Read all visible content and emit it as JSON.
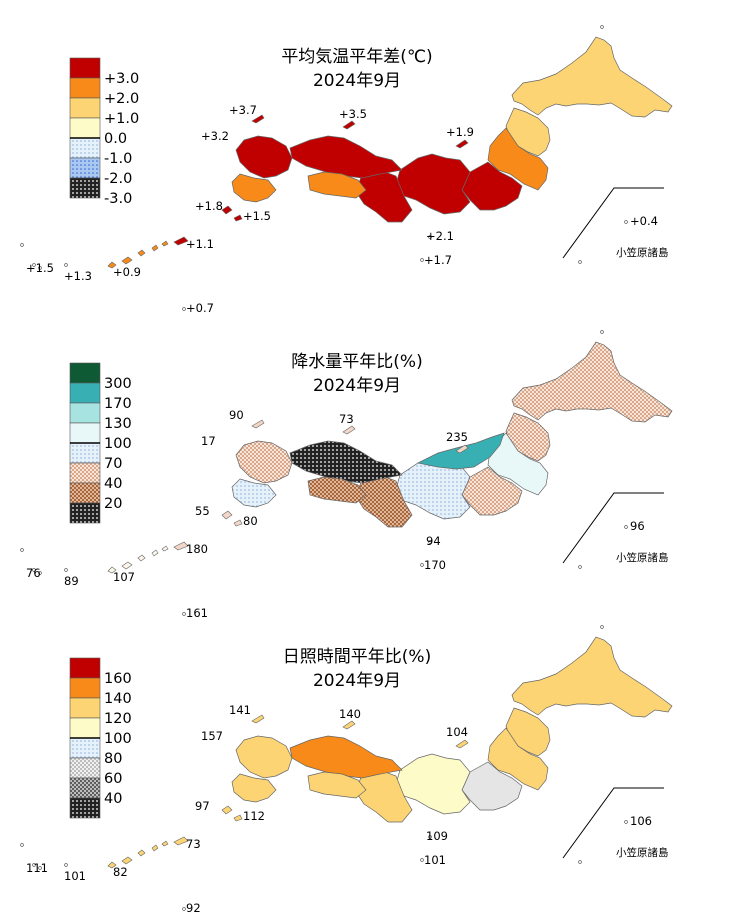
{
  "panels": [
    {
      "id": "temperature",
      "title_line1": "平均気温平年差(℃)",
      "title_line2": "2024年9月",
      "legend": [
        {
          "label": "+3.0",
          "color": "#c00000",
          "pattern": "none"
        },
        {
          "label": "+2.0",
          "color": "#f78a18",
          "pattern": "none"
        },
        {
          "label": "+1.0",
          "color": "#fcd474",
          "pattern": "none"
        },
        {
          "label": "0.0",
          "color": "#fdfbc8",
          "pattern": "none"
        },
        {
          "label": "-1.0",
          "color": "#e6f2fb",
          "pattern": "dots-light"
        },
        {
          "label": "-2.0",
          "color": "#aac8f2",
          "pattern": "dots-blue"
        },
        {
          "label": "-3.0",
          "color": "#3a4fd6",
          "pattern": "dots-white"
        }
      ],
      "station_values": [
        "+3.7",
        "+3.5",
        "+3.2",
        "+1.9",
        "+1.8",
        "+1.5",
        "+1.1",
        "+1.5",
        "+1.3",
        "+0.9",
        "+0.7",
        "+2.1",
        "+1.7",
        "+0.4"
      ],
      "island_label": "小笠原諸島"
    },
    {
      "id": "precipitation",
      "title_line1": "降水量平年比(%)",
      "title_line2": "2024年9月",
      "legend": [
        {
          "label": "300",
          "color": "#0e5a35",
          "pattern": "none"
        },
        {
          "label": "170",
          "color": "#38b0b3",
          "pattern": "none"
        },
        {
          "label": "130",
          "color": "#a7e3e1",
          "pattern": "none"
        },
        {
          "label": "100",
          "color": "#e8f7f7",
          "pattern": "none"
        },
        {
          "label": "70",
          "color": "#fdf6ea",
          "pattern": "dots-light"
        },
        {
          "label": "40",
          "color": "#f2d7c8",
          "pattern": "check-brown"
        },
        {
          "label": "20",
          "color": "#c88a5c",
          "pattern": "check-dark"
        },
        {
          "label": "",
          "color": "#5c3417",
          "pattern": "dots-white"
        }
      ],
      "station_values": [
        "90",
        "73",
        "17",
        "235",
        "55",
        "80",
        "180",
        "76",
        "89",
        "107",
        "161",
        "94",
        "170",
        "96"
      ],
      "island_label": "小笠原諸島"
    },
    {
      "id": "sunshine",
      "title_line1": "日照時間平年比(%)",
      "title_line2": "2024年9月",
      "legend": [
        {
          "label": "160",
          "color": "#c00000",
          "pattern": "none"
        },
        {
          "label": "140",
          "color": "#f78a18",
          "pattern": "none"
        },
        {
          "label": "120",
          "color": "#fcd474",
          "pattern": "none"
        },
        {
          "label": "100",
          "color": "#fdfbc8",
          "pattern": "none"
        },
        {
          "label": "80",
          "color": "#ffffff",
          "pattern": "dots-light"
        },
        {
          "label": "60",
          "color": "#d8d8d8",
          "pattern": "check-gray"
        },
        {
          "label": "40",
          "color": "#8c8c8c",
          "pattern": "check-dark-gray"
        },
        {
          "label": "",
          "color": "#2a2a2a",
          "pattern": "dots-white"
        }
      ],
      "station_values": [
        "141",
        "140",
        "157",
        "104",
        "97",
        "112",
        "73",
        "111",
        "101",
        "82",
        "92",
        "109",
        "101",
        "106"
      ],
      "island_label": "小笠原諸島"
    }
  ],
  "region_colors": {
    "temperature": {
      "hokkaido": "#fcd474",
      "tohoku_north": "#fcd474",
      "tohoku_mid": "#f78a18",
      "kanto": "#c00000",
      "chubu": "#c00000",
      "kinki": "#c00000",
      "chugoku": "#c00000",
      "shikoku": "#f78a18",
      "kyushu": "#c00000",
      "kyushu_south": "#f78a18"
    },
    "precipitation": {
      "hokkaido": "#f2d7c8",
      "tohoku_north": "#f2d7c8",
      "tohoku_mid": "#e8f7f7",
      "kanto": "#f2d7c8",
      "chubu": "#fdf6ea",
      "kinki": "#c88a5c",
      "chugoku": "#5c3417",
      "shikoku": "#c88a5c",
      "kyushu": "#f2d7c8",
      "kyushu_south": "#fdf6ea",
      "hokuriku": "#38b0b3"
    },
    "sunshine": {
      "hokkaido": "#fcd474",
      "tohoku_north": "#fcd474",
      "tohoku_mid": "#fcd474",
      "kanto": "#e5e5e5",
      "chubu": "#fdfbc8",
      "kinki": "#fcd474",
      "chugoku": "#f78a18",
      "shikoku": "#fcd474",
      "kyushu": "#fcd474",
      "kyushu_south": "#fcd474"
    }
  }
}
